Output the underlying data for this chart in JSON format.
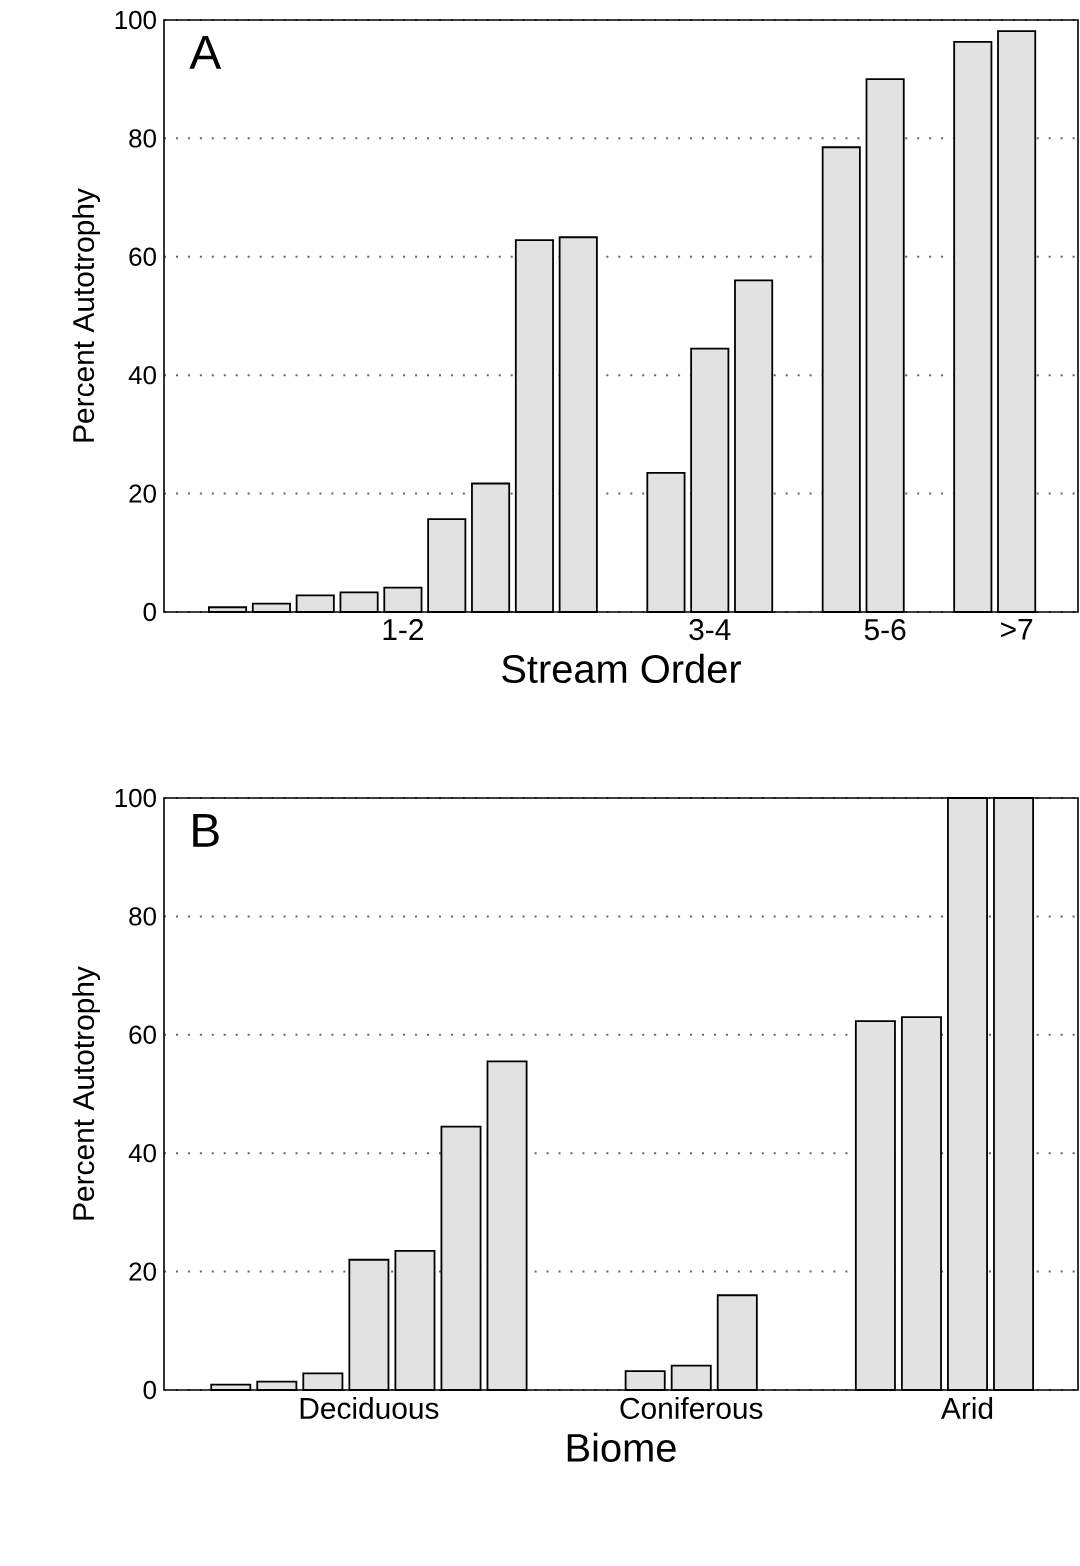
{
  "chart_data": [
    {
      "type": "bar",
      "annotations": [
        "A"
      ],
      "xlabel": "Stream Order",
      "ylabel": "Percent Autotrophy",
      "categories": [
        null,
        null,
        null,
        null,
        "1-2",
        null,
        null,
        null,
        null,
        null,
        null,
        "3-4",
        null,
        null,
        null,
        "5-6",
        null,
        null,
        ">7"
      ],
      "values": [
        0.8,
        1.4,
        2.8,
        3.3,
        4.1,
        15.7,
        21.7,
        62.8,
        63.3,
        null,
        23.5,
        44.5,
        56,
        null,
        78.5,
        90,
        null,
        96.3,
        98.1
      ],
      "color": "#e2e2e2",
      "ylim": [
        0,
        100
      ],
      "yticks": [
        0,
        20,
        40,
        60,
        80,
        100
      ],
      "grid": "y"
    },
    {
      "type": "bar",
      "annotations": [
        "B"
      ],
      "xlabel": "Biome",
      "ylabel": "Percent Autotrophy",
      "categories": [
        null,
        null,
        null,
        "Deciduous",
        null,
        null,
        null,
        null,
        null,
        null,
        "Coniferous",
        null,
        null,
        null,
        null,
        null,
        "Arid",
        null
      ],
      "values": [
        0.9,
        1.4,
        2.8,
        22,
        23.5,
        44.5,
        55.5,
        null,
        null,
        3.2,
        4.1,
        16,
        null,
        null,
        62.3,
        63,
        100,
        100
      ],
      "color": "#e2e2e2",
      "ylim": [
        0,
        100
      ],
      "yticks": [
        0,
        20,
        40,
        60,
        80,
        100
      ],
      "grid": "y"
    }
  ]
}
